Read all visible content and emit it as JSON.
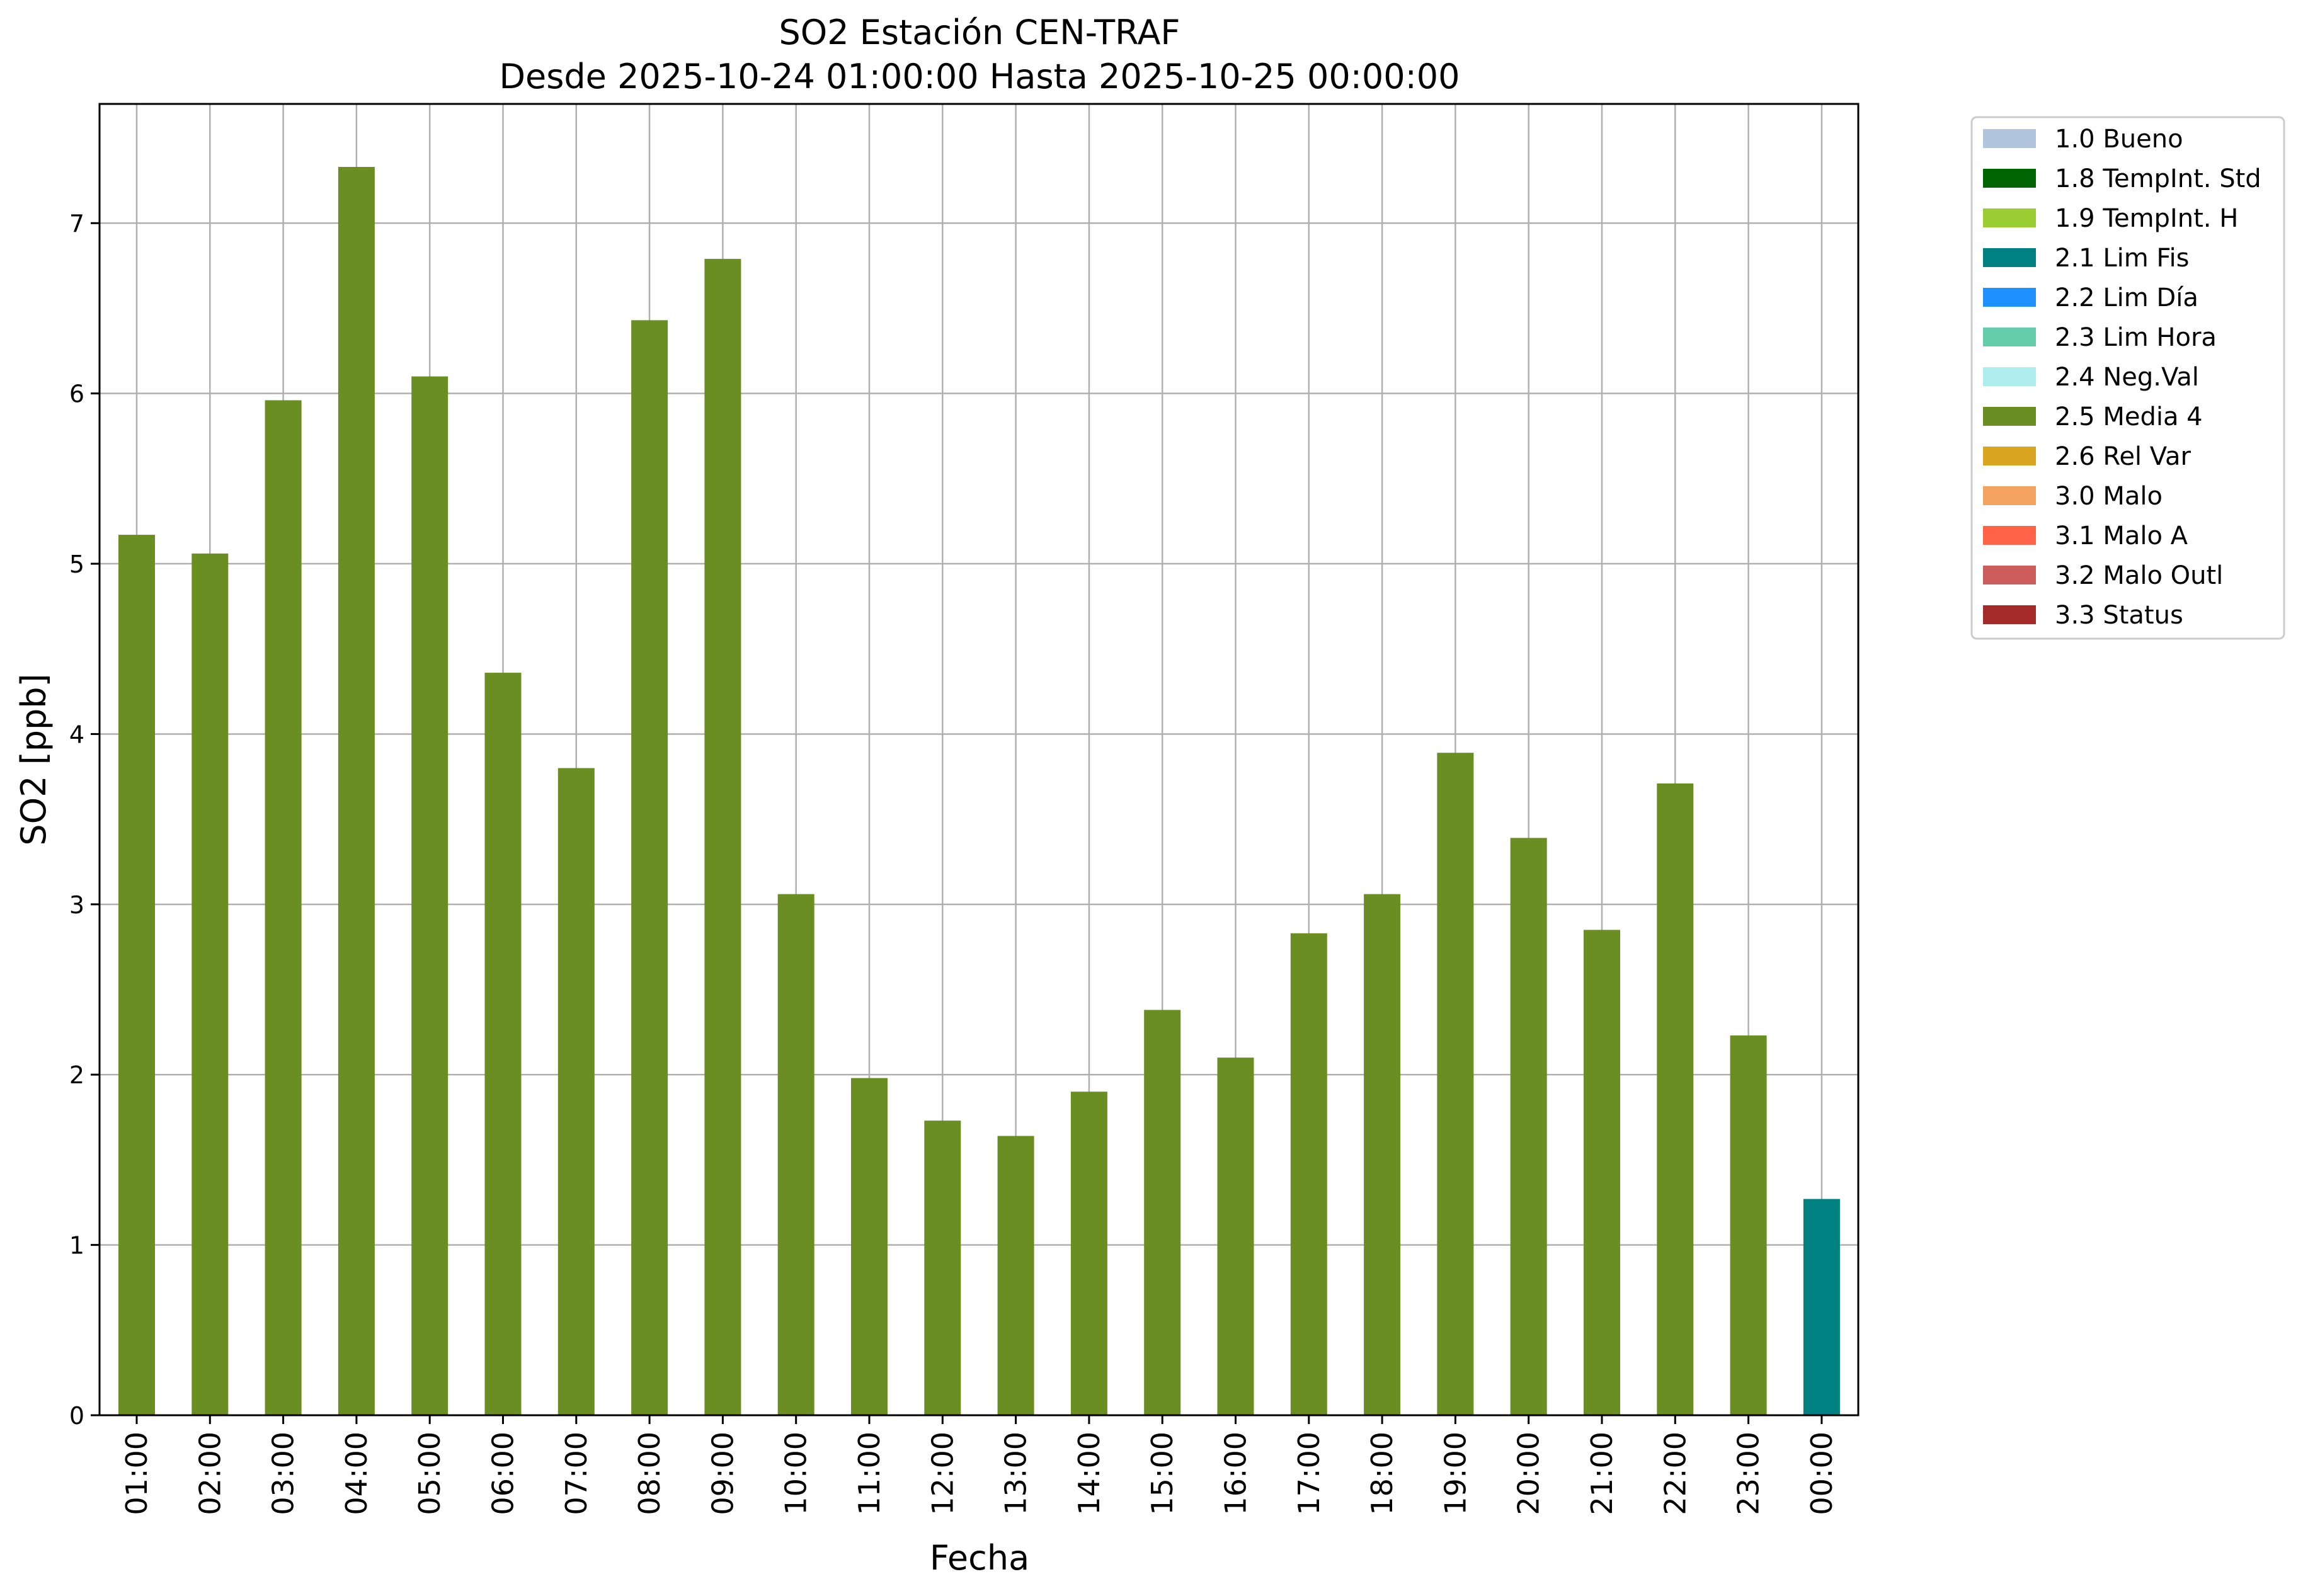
{
  "chart_data": {
    "type": "bar",
    "title": "SO2 Estación CEN-TRAF",
    "subtitle": "Desde 2025-10-24 01:00:00 Hasta 2025-10-25 00:00:00",
    "xlabel": "Fecha",
    "ylabel": "SO2 [ppb]",
    "ylim": [
      0,
      7.7
    ],
    "yticks": [
      0,
      1,
      2,
      3,
      4,
      5,
      6,
      7
    ],
    "grid": true,
    "legend_position": "outside-right",
    "categories": [
      "01:00",
      "02:00",
      "03:00",
      "04:00",
      "05:00",
      "06:00",
      "07:00",
      "08:00",
      "09:00",
      "10:00",
      "11:00",
      "12:00",
      "13:00",
      "14:00",
      "15:00",
      "16:00",
      "17:00",
      "18:00",
      "19:00",
      "20:00",
      "21:00",
      "22:00",
      "23:00",
      "00:00"
    ],
    "values": [
      5.17,
      5.06,
      5.96,
      7.33,
      6.1,
      4.36,
      3.8,
      6.43,
      6.79,
      3.06,
      1.98,
      1.73,
      1.64,
      1.9,
      2.38,
      2.1,
      2.83,
      3.06,
      3.89,
      3.39,
      2.85,
      3.71,
      2.23,
      1.27
    ],
    "flags": [
      "2.5 Media 4",
      "2.5 Media 4",
      "2.5 Media 4",
      "2.5 Media 4",
      "2.5 Media 4",
      "2.5 Media 4",
      "2.5 Media 4",
      "2.5 Media 4",
      "2.5 Media 4",
      "2.5 Media 4",
      "2.5 Media 4",
      "2.5 Media 4",
      "2.5 Media 4",
      "2.5 Media 4",
      "2.5 Media 4",
      "2.5 Media 4",
      "2.5 Media 4",
      "2.5 Media 4",
      "2.5 Media 4",
      "2.5 Media 4",
      "2.5 Media 4",
      "2.5 Media 4",
      "2.5 Media 4",
      "2.1 Lim Fis"
    ],
    "legend": [
      {
        "label": "1.0 Bueno",
        "color": "#b0c4de"
      },
      {
        "label": "1.8 TempInt. Std",
        "color": "#006400"
      },
      {
        "label": "1.9 TempInt. H",
        "color": "#9acd32"
      },
      {
        "label": "2.1 Lim Fis",
        "color": "#008080"
      },
      {
        "label": "2.2 Lim Día",
        "color": "#1e90ff"
      },
      {
        "label": "2.3 Lim Hora",
        "color": "#66cdaa"
      },
      {
        "label": "2.4 Neg.Val",
        "color": "#afeeee"
      },
      {
        "label": "2.5 Media 4",
        "color": "#6b8e23"
      },
      {
        "label": "2.6 Rel Var",
        "color": "#daa520"
      },
      {
        "label": "3.0 Malo",
        "color": "#f4a460"
      },
      {
        "label": "3.1 Malo A",
        "color": "#ff6347"
      },
      {
        "label": "3.2 Malo Outl",
        "color": "#cd5c5c"
      },
      {
        "label": "3.3 Status",
        "color": "#a52a2a"
      }
    ]
  }
}
